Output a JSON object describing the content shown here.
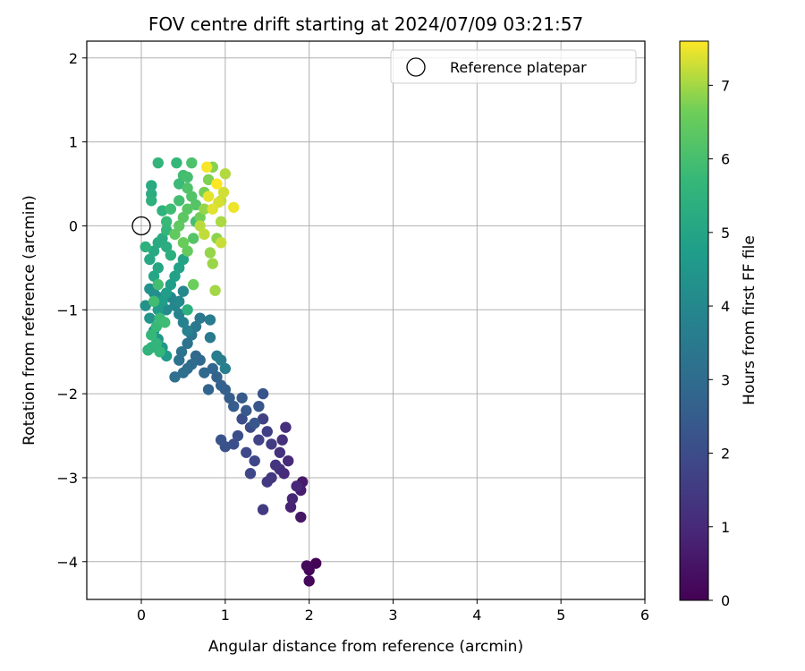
{
  "chart_data": {
    "type": "scatter",
    "title": "FOV centre drift starting at 2024/07/09 03:21:57",
    "xlabel": "Angular distance from reference (arcmin)",
    "ylabel": "Rotation from reference (arcmin)",
    "xlim": [
      -0.65,
      6.0
    ],
    "ylim": [
      -4.45,
      2.2
    ],
    "xticks": [
      0,
      1,
      2,
      3,
      4,
      5,
      6
    ],
    "yticks": [
      -4,
      -3,
      -2,
      -1,
      0,
      1,
      2
    ],
    "grid": true,
    "legend": {
      "placement": "top-right",
      "entries": [
        "Reference platepar"
      ]
    },
    "reference_point": {
      "x": 0.0,
      "y": 0.0,
      "label": "Reference platepar"
    },
    "colorbar": {
      "label": "Hours from first FF file",
      "colormap": "viridis",
      "range": [
        0,
        7.6
      ],
      "ticks": [
        0,
        1,
        2,
        3,
        4,
        5,
        6,
        7
      ]
    },
    "series": [
      {
        "points": [
          [
            2.08,
            -4.02,
            0.05
          ],
          [
            2.0,
            -4.1,
            0.1
          ],
          [
            2.0,
            -4.23,
            0.15
          ],
          [
            1.97,
            -4.05,
            0.2
          ],
          [
            1.9,
            -3.47,
            0.5
          ],
          [
            1.92,
            -3.05,
            0.6
          ],
          [
            1.9,
            -3.15,
            0.7
          ],
          [
            1.78,
            -3.35,
            0.8
          ],
          [
            1.8,
            -3.25,
            0.9
          ],
          [
            1.85,
            -3.1,
            0.95
          ],
          [
            1.7,
            -2.95,
            1.0
          ],
          [
            1.75,
            -2.8,
            1.05
          ],
          [
            1.65,
            -2.9,
            1.1
          ],
          [
            1.72,
            -2.4,
            1.15
          ],
          [
            1.68,
            -2.55,
            1.2
          ],
          [
            1.65,
            -2.7,
            1.25
          ],
          [
            1.6,
            -2.85,
            1.3
          ],
          [
            1.55,
            -3.0,
            1.35
          ],
          [
            1.5,
            -3.05,
            1.45
          ],
          [
            1.45,
            -3.38,
            1.5
          ],
          [
            1.55,
            -2.6,
            1.55
          ],
          [
            1.5,
            -2.45,
            1.6
          ],
          [
            1.45,
            -2.3,
            1.7
          ],
          [
            1.4,
            -2.55,
            1.75
          ],
          [
            1.35,
            -2.8,
            1.8
          ],
          [
            1.3,
            -2.95,
            1.85
          ],
          [
            1.25,
            -2.7,
            1.9
          ],
          [
            1.3,
            -2.4,
            1.95
          ],
          [
            1.2,
            -2.3,
            2.0
          ],
          [
            1.15,
            -2.5,
            2.05
          ],
          [
            1.1,
            -2.6,
            2.1
          ],
          [
            1.0,
            -2.63,
            2.15
          ],
          [
            0.95,
            -2.55,
            2.2
          ],
          [
            1.45,
            -2.0,
            2.25
          ],
          [
            1.4,
            -2.15,
            2.3
          ],
          [
            1.35,
            -2.35,
            2.35
          ],
          [
            1.25,
            -2.2,
            2.4
          ],
          [
            1.2,
            -2.05,
            2.45
          ],
          [
            1.1,
            -2.15,
            2.5
          ],
          [
            1.05,
            -2.05,
            2.55
          ],
          [
            1.0,
            -1.95,
            2.6
          ],
          [
            0.95,
            -1.9,
            2.65
          ],
          [
            0.9,
            -1.8,
            2.7
          ],
          [
            0.8,
            -1.95,
            2.75
          ],
          [
            0.85,
            -1.7,
            2.8
          ],
          [
            0.75,
            -1.75,
            2.85
          ],
          [
            0.7,
            -1.6,
            2.9
          ],
          [
            0.65,
            -1.55,
            2.95
          ],
          [
            0.6,
            -1.65,
            3.0
          ],
          [
            0.55,
            -1.7,
            3.05
          ],
          [
            0.5,
            -1.75,
            3.1
          ],
          [
            0.4,
            -1.8,
            3.15
          ],
          [
            0.45,
            -1.6,
            3.2
          ],
          [
            0.48,
            -1.5,
            3.25
          ],
          [
            0.55,
            -1.4,
            3.3
          ],
          [
            0.6,
            -1.3,
            3.35
          ],
          [
            0.65,
            -1.2,
            3.4
          ],
          [
            0.7,
            -1.1,
            3.45
          ],
          [
            0.82,
            -1.33,
            3.5
          ],
          [
            0.82,
            -1.12,
            3.55
          ],
          [
            0.9,
            -1.55,
            3.6
          ],
          [
            0.95,
            -1.6,
            3.65
          ],
          [
            1.0,
            -1.7,
            3.7
          ],
          [
            0.55,
            -1.25,
            3.75
          ],
          [
            0.5,
            -1.15,
            3.8
          ],
          [
            0.45,
            -1.05,
            3.85
          ],
          [
            0.4,
            -0.95,
            3.9
          ],
          [
            0.35,
            -0.85,
            3.95
          ],
          [
            0.5,
            -0.78,
            4.0
          ],
          [
            0.45,
            -0.9,
            4.05
          ],
          [
            0.3,
            -1.0,
            4.1
          ],
          [
            0.25,
            -0.95,
            4.15
          ],
          [
            0.2,
            -0.85,
            4.2
          ],
          [
            0.15,
            -0.8,
            4.25
          ],
          [
            0.1,
            -0.75,
            4.3
          ],
          [
            0.05,
            -0.95,
            4.35
          ],
          [
            0.1,
            -1.1,
            4.4
          ],
          [
            0.15,
            -1.25,
            4.45
          ],
          [
            0.2,
            -1.35,
            4.5
          ],
          [
            0.25,
            -1.45,
            4.55
          ],
          [
            0.3,
            -1.55,
            4.6
          ],
          [
            0.2,
            -1.0,
            4.65
          ],
          [
            0.25,
            -0.9,
            4.7
          ],
          [
            0.3,
            -0.8,
            4.75
          ],
          [
            0.35,
            -0.7,
            4.8
          ],
          [
            0.4,
            -0.6,
            4.85
          ],
          [
            0.45,
            -0.5,
            4.9
          ],
          [
            0.5,
            -0.4,
            4.95
          ],
          [
            0.15,
            -0.6,
            5.0
          ],
          [
            0.2,
            -0.5,
            5.05
          ],
          [
            0.1,
            -0.4,
            5.1
          ],
          [
            0.15,
            -0.3,
            5.15
          ],
          [
            0.2,
            -0.2,
            5.2
          ],
          [
            0.25,
            -0.15,
            5.25
          ],
          [
            0.3,
            -0.25,
            5.3
          ],
          [
            0.35,
            -0.35,
            5.35
          ],
          [
            0.55,
            -1.0,
            5.4
          ],
          [
            0.05,
            -0.25,
            5.45
          ],
          [
            0.12,
            -1.45,
            5.5
          ],
          [
            0.08,
            -1.48,
            5.55
          ],
          [
            0.18,
            -1.4,
            5.6
          ],
          [
            0.22,
            -1.5,
            5.65
          ],
          [
            0.12,
            -1.3,
            5.7
          ],
          [
            0.18,
            -1.2,
            5.75
          ],
          [
            0.22,
            -1.1,
            5.8
          ],
          [
            0.28,
            -1.15,
            5.85
          ],
          [
            0.15,
            -0.9,
            5.9
          ],
          [
            0.2,
            -0.7,
            5.95
          ],
          [
            0.12,
            0.48,
            5.2
          ],
          [
            0.12,
            0.38,
            5.3
          ],
          [
            0.12,
            0.3,
            5.4
          ],
          [
            0.25,
            0.18,
            5.5
          ],
          [
            0.2,
            0.75,
            5.6
          ],
          [
            0.42,
            0.75,
            5.7
          ],
          [
            0.45,
            0.5,
            5.8
          ],
          [
            0.5,
            0.6,
            5.9
          ],
          [
            0.55,
            0.58,
            6.0
          ],
          [
            0.6,
            0.75,
            6.1
          ],
          [
            0.55,
            0.45,
            6.15
          ],
          [
            0.6,
            0.35,
            6.2
          ],
          [
            0.65,
            0.25,
            6.25
          ],
          [
            0.55,
            0.2,
            6.3
          ],
          [
            0.5,
            0.1,
            6.35
          ],
          [
            0.45,
            0.0,
            6.4
          ],
          [
            0.4,
            -0.1,
            6.45
          ],
          [
            0.55,
            -0.3,
            6.5
          ],
          [
            0.5,
            -0.2,
            6.55
          ],
          [
            0.62,
            -0.7,
            6.6
          ],
          [
            0.7,
            0.1,
            6.65
          ],
          [
            0.75,
            0.4,
            6.7
          ],
          [
            0.8,
            0.55,
            6.75
          ],
          [
            0.85,
            0.7,
            6.8
          ],
          [
            0.9,
            -0.15,
            6.85
          ],
          [
            0.82,
            -0.32,
            6.9
          ],
          [
            0.85,
            -0.45,
            6.95
          ],
          [
            0.88,
            -0.77,
            7.0
          ],
          [
            0.95,
            0.05,
            7.05
          ],
          [
            1.0,
            0.62,
            7.1
          ],
          [
            0.7,
            0.0,
            7.15
          ],
          [
            0.75,
            -0.1,
            7.2
          ],
          [
            0.95,
            -0.2,
            7.25
          ],
          [
            0.98,
            0.4,
            7.3
          ],
          [
            0.92,
            0.28,
            7.35
          ],
          [
            0.85,
            0.2,
            7.4
          ],
          [
            0.8,
            0.35,
            7.45
          ],
          [
            1.1,
            0.22,
            7.5
          ],
          [
            0.78,
            0.7,
            7.55
          ],
          [
            0.9,
            0.5,
            7.6
          ],
          [
            0.65,
            0.05,
            6.0
          ],
          [
            0.35,
            0.2,
            5.85
          ],
          [
            0.3,
            0.05,
            5.75
          ],
          [
            0.3,
            -0.05,
            5.65
          ],
          [
            0.45,
            0.3,
            5.95
          ],
          [
            0.62,
            -0.15,
            6.25
          ],
          [
            0.75,
            0.2,
            6.9
          ],
          [
            0.95,
            0.3,
            7.2
          ]
        ]
      }
    ]
  }
}
